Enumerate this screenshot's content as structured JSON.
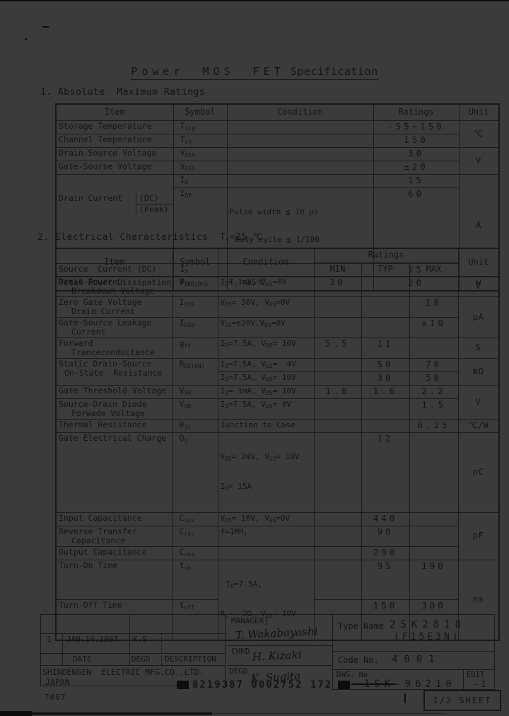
{
  "colors": {
    "background": "#3b3b3b",
    "ink": "#141414"
  },
  "doc": {
    "title_main": "Power MOS FET",
    "title_rest": "Specification"
  },
  "sec1": {
    "heading": "1. Absolute  Maximum Ratings",
    "table": {
      "headers": {
        "item": "Item",
        "symbol": "Symbol",
        "condition": "Condition",
        "ratings": "Ratings",
        "unit": "Unit"
      },
      "rows": [
        {
          "item": "Storage Temperature",
          "sym": "T~stg~",
          "val": "-55~150",
          "unit": "℃"
        },
        {
          "item": "Channel Temperature",
          "sym": "T~ch~",
          "val": "150"
        },
        {
          "item": "Drain-Source Voltage",
          "sym": "V~DSS~",
          "val": "30",
          "unit": "V"
        },
        {
          "item": "Gate-Sourse Voltage",
          "sym": "V~GSS~",
          "val": "±20"
        },
        {
          "item": "Drain Current",
          "dc": "(DC)",
          "peak": "(Peak)",
          "sym": "I~D~",
          "val": "15",
          "unit": "A"
        },
        {
          "sym": "I~DP~",
          "cond": "Pulse width ≦ 10 μs",
          "cond2": "Duty cycle ≦ 1/100",
          "val": "60"
        },
        {
          "item": "Source  Current (DC)",
          "sym": "I~S~",
          "val": "15"
        },
        {
          "item": "Total Power Dissipation",
          "sym": "P~T~",
          "cond": "T~c~ =25℃",
          "val": "20",
          "unit": "W"
        }
      ]
    }
  },
  "sec2": {
    "heading": "2. Electrical Characteristics  T~c~=25 ℃",
    "table": {
      "headers": {
        "item": "Item",
        "symbol": "Symbol",
        "condition": "Condition",
        "ratings": "Ratings",
        "min": "MIN",
        "typ": "TYP",
        "max": "MAX",
        "unit": "Unit"
      },
      "rows": [
        {
          "item": "Drain-Source",
          "item2": "Breakdown Voltage",
          "sym": "V~(BR)DSS~",
          "cond": "I~D~= 1mA, V~GS~=0V",
          "min": "30",
          "unit": "V"
        },
        {
          "item": "Zero Gate Voltage",
          "item2": "Drain Current",
          "sym": "I~DSS~",
          "cond": "V~DS~= 30V, V~GS~=0V",
          "max": "10",
          "unit": "μA"
        },
        {
          "item": "Gate-Source Leakage",
          "item2": "Current",
          "sym": "I~GSS~",
          "cond": "V~GS~=±20V,V~DS~=0V",
          "max": "±10"
        },
        {
          "item": "Forward",
          "item2": "Tranceconductance",
          "sym": "g~fs~",
          "cond": "I~D~=7.5A, V~DS~= 10V",
          "min": "5.5",
          "typ": "11",
          "unit": "S"
        },
        {
          "item": "Static Drain-Source",
          "item2": "On-State  Resistance",
          "sym": "R~DS(ON)~",
          "cond": "I~D~=7.5A, V~GS~=  4V",
          "typ": "50",
          "max": "70",
          "unit": "mΩ"
        },
        {
          "cond": "I~D~=7.5A, V~GS~= 10V",
          "typ": "30",
          "max": "50"
        },
        {
          "item": "Gate Threshold Voltage",
          "sym": "V~TH~",
          "cond": "I~D~= 1mA, V~DS~= 10V",
          "min": "1.0",
          "typ": "1.6",
          "max": "2.2",
          "unit": "V"
        },
        {
          "item": "Source-Drain Diode",
          "item2": "Forwade Voltage",
          "sym": "V~SD~",
          "cond": "I~S~=7.5A, V~GS~= 0V",
          "max": "1.5"
        },
        {
          "item": "Thermal Resistance",
          "sym": "θ~jc~",
          "cond": "Junction to Case",
          "max": "6.25",
          "unit": "℃/W"
        },
        {
          "item": "Gate Electrical Charge",
          "sym": "Q~g~",
          "cond": "V~DD~= 24V, V~GS~= 10V",
          "cond2": "I~D~= 15A",
          "typ": "12",
          "unit": "nC"
        },
        {
          "item": "Input Capacitance",
          "sym": "C~iss~",
          "cond": "V~DS~= 10V, V~GS~=0V",
          "typ": "440",
          "unit": "pF"
        },
        {
          "item": "Reverse Transfer",
          "item2": "Capacitance",
          "sym": "C~rss~",
          "cond": "f=1MH~z~",
          "typ": "90"
        },
        {
          "item": "Output Capacitance",
          "sym": "C~oss~",
          "typ": "290"
        },
        {
          "item": "Turn-On Time",
          "sym": "t~on~",
          "cond": "I~D~=7.5A,",
          "cond2": "R~L~=  2Ω, V~GS~= 10V",
          "typ": "95",
          "max": "190",
          "unit": "ns"
        },
        {
          "item": "Turn-Off Time",
          "sym": "t~off~",
          "typ": "150",
          "max": "300"
        }
      ]
    }
  },
  "titleblock": {
    "rev": "1",
    "date": "JAN.14.1997",
    "by": "K.S",
    "date_label": "DATE",
    "degd_label": "DEGD",
    "desc_label": "DESCRIPTION",
    "company": "SHINDENGEN  ELECTRIC MFG.CO.,LTD.",
    "country": "JAPAN",
    "manager_label": "MANAGER]",
    "chkd_label": "CHKD",
    "degd2_label": "DEGD",
    "sig_manager": "T. Wakabayashi",
    "sig_chkd": "H. Kizaki",
    "sig_degd": "K. Sugita",
    "type_label": "Type Name",
    "type_value": "2SK2818",
    "type_value2": "(F15E3N)",
    "code_label": "Code No.",
    "code_value": "4001",
    "dwg_label": "DWG. No.",
    "dwg_value": "1SK-96210",
    "edit_label": "EDIT",
    "edit_value": "-1"
  },
  "footer": {
    "corner_note": "7007",
    "ocr_code": "8219387 0002752 172",
    "sheet_label": "1/2 SHEET"
  }
}
